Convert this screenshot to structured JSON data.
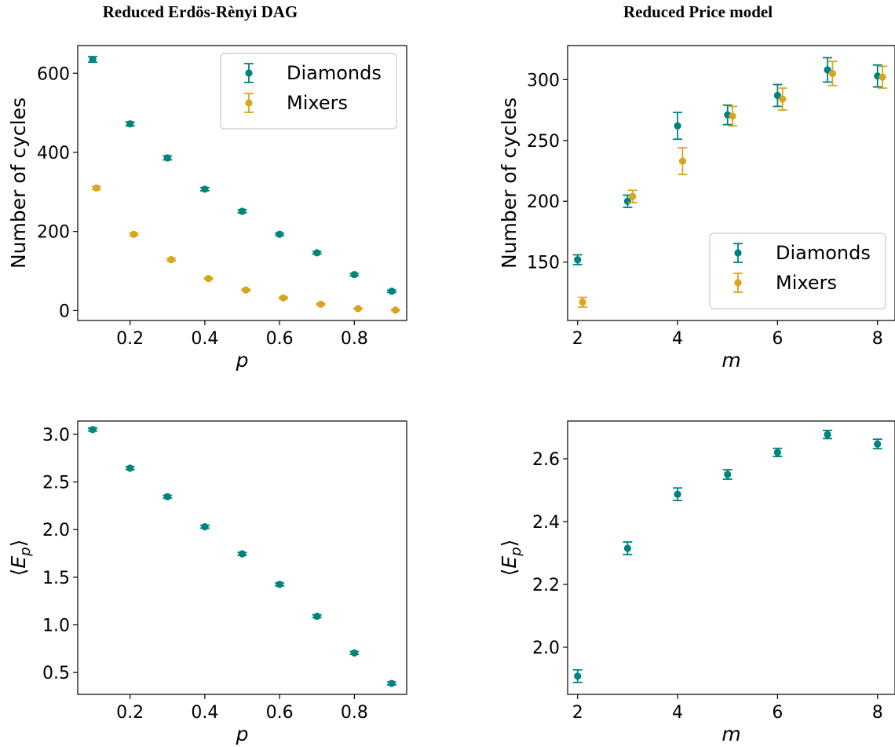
{
  "columns": [
    {
      "title": "Reduced Erdös-Rènyi DAG"
    },
    {
      "title": "Reduced Price model"
    }
  ],
  "colors": {
    "diamonds": "#00827f",
    "mixers": "#d9a520"
  },
  "chart_data": [
    {
      "type": "scatter",
      "panel": "top-left",
      "xlabel": "p",
      "ylabel": "Number of cycles",
      "xlim": [
        0.06,
        0.94
      ],
      "ylim": [
        -25,
        670
      ],
      "xticks": [
        0.2,
        0.4,
        0.6,
        0.8
      ],
      "xtick_labels": [
        "0.2",
        "0.4",
        "0.6",
        "0.8"
      ],
      "yticks": [
        0,
        200,
        400,
        600
      ],
      "ytick_labels": [
        "0",
        "200",
        "400",
        "600"
      ],
      "legend": {
        "placement": "top-right",
        "entries": [
          "Diamonds",
          "Mixers"
        ]
      },
      "series": [
        {
          "name": "Diamonds",
          "color": "#00827f",
          "x": [
            0.1,
            0.2,
            0.3,
            0.4,
            0.5,
            0.6,
            0.7,
            0.8,
            0.9
          ],
          "y": [
            635,
            472,
            386,
            307,
            251,
            193,
            146,
            91,
            49
          ],
          "err": [
            7,
            5,
            5,
            4,
            4,
            3,
            3,
            3,
            3
          ]
        },
        {
          "name": "Mixers",
          "color": "#d9a520",
          "x": [
            0.11,
            0.21,
            0.31,
            0.41,
            0.51,
            0.61,
            0.71,
            0.81,
            0.91
          ],
          "y": [
            310,
            193,
            129,
            81,
            52,
            32,
            16,
            5,
            1
          ],
          "err": [
            4,
            3,
            3,
            2,
            2,
            2,
            2,
            1,
            1
          ]
        }
      ]
    },
    {
      "type": "scatter",
      "panel": "top-right",
      "xlabel": "m",
      "ylabel": "Number of cycles",
      "xlim": [
        1.8,
        8.35
      ],
      "ylim": [
        102,
        328
      ],
      "xticks": [
        2,
        4,
        6,
        8
      ],
      "xtick_labels": [
        "2",
        "4",
        "6",
        "8"
      ],
      "yticks": [
        150,
        200,
        250,
        300
      ],
      "ytick_labels": [
        "150",
        "200",
        "250",
        "300"
      ],
      "legend": {
        "placement": "bottom-right",
        "entries": [
          "Diamonds",
          "Mixers"
        ]
      },
      "series": [
        {
          "name": "Diamonds",
          "color": "#00827f",
          "x": [
            2,
            3,
            4,
            5,
            6,
            7,
            8
          ],
          "y": [
            152,
            200,
            262,
            271,
            287,
            308,
            303
          ],
          "err": [
            4,
            5,
            11,
            8,
            9,
            10,
            9
          ]
        },
        {
          "name": "Mixers",
          "color": "#d9a520",
          "x": [
            2.1,
            3.1,
            4.1,
            5.1,
            6.1,
            7.1,
            8.1
          ],
          "y": [
            117,
            204,
            233,
            270,
            284,
            305,
            302
          ],
          "err": [
            4,
            5,
            11,
            8,
            9,
            10,
            9
          ]
        }
      ]
    },
    {
      "type": "scatter",
      "panel": "bottom-left",
      "xlabel": "p",
      "ylabel": "⟨E_p⟩",
      "xlim": [
        0.06,
        0.94
      ],
      "ylim": [
        0.27,
        3.14
      ],
      "xticks": [
        0.2,
        0.4,
        0.6,
        0.8
      ],
      "xtick_labels": [
        "0.2",
        "0.4",
        "0.6",
        "0.8"
      ],
      "yticks": [
        0.5,
        1.0,
        1.5,
        2.0,
        2.5,
        3.0
      ],
      "ytick_labels": [
        "0.5",
        "1.0",
        "1.5",
        "2.0",
        "2.5",
        "3.0"
      ],
      "series": [
        {
          "color": "#00827f",
          "x": [
            0.1,
            0.2,
            0.3,
            0.4,
            0.5,
            0.6,
            0.7,
            0.8,
            0.9
          ],
          "y": [
            3.05,
            2.645,
            2.345,
            2.03,
            1.745,
            1.425,
            1.09,
            0.705,
            0.385
          ],
          "err": [
            0.015,
            0.015,
            0.015,
            0.015,
            0.015,
            0.015,
            0.015,
            0.015,
            0.015
          ]
        }
      ]
    },
    {
      "type": "scatter",
      "panel": "bottom-right",
      "xlabel": "m",
      "ylabel": "⟨E_p⟩",
      "xlim": [
        1.8,
        8.35
      ],
      "ylim": [
        1.85,
        2.72
      ],
      "xticks": [
        2,
        4,
        6,
        8
      ],
      "xtick_labels": [
        "2",
        "4",
        "6",
        "8"
      ],
      "yticks": [
        2.0,
        2.2,
        2.4,
        2.6
      ],
      "ytick_labels": [
        "2.0",
        "2.2",
        "2.4",
        "2.6"
      ],
      "series": [
        {
          "color": "#00827f",
          "x": [
            2,
            3,
            4,
            5,
            6,
            7,
            8
          ],
          "y": [
            1.908,
            2.315,
            2.487,
            2.55,
            2.62,
            2.677,
            2.647
          ],
          "err": [
            0.02,
            0.02,
            0.02,
            0.015,
            0.013,
            0.013,
            0.015
          ]
        }
      ]
    }
  ]
}
